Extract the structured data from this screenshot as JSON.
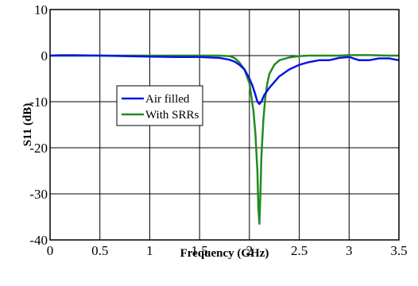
{
  "chart_data": {
    "type": "line",
    "xlabel": "Frequency (GHz)",
    "ylabel": "S11 (dB)",
    "xlim": [
      0,
      3.5
    ],
    "ylim": [
      -40,
      10
    ],
    "xticks": [
      0,
      0.5,
      1,
      1.5,
      2,
      2.5,
      3,
      3.5
    ],
    "yticks": [
      10,
      0,
      -10,
      -20,
      -30,
      -40
    ],
    "xtick_labels": [
      "0",
      "0.5",
      "1",
      "1.5",
      "2",
      "2.5",
      "3",
      "3.5"
    ],
    "ytick_labels": [
      "10",
      "0",
      "-10",
      "-20",
      "-30",
      "-40"
    ],
    "grid": true,
    "legend_position": "left-center",
    "series": [
      {
        "name": "Air filled",
        "color": "#0a14e6",
        "x": [
          0,
          0.1,
          0.25,
          0.5,
          0.75,
          1.0,
          1.25,
          1.5,
          1.7,
          1.8,
          1.85,
          1.9,
          1.95,
          2.0,
          2.03,
          2.06,
          2.08,
          2.1,
          2.12,
          2.15,
          2.2,
          2.3,
          2.4,
          2.5,
          2.6,
          2.7,
          2.8,
          2.9,
          3.0,
          3.1,
          3.2,
          3.3,
          3.4,
          3.5
        ],
        "y": [
          0,
          0,
          0,
          0,
          -0.1,
          -0.2,
          -0.3,
          -0.3,
          -0.5,
          -0.9,
          -1.3,
          -2.0,
          -3.0,
          -5.0,
          -6.5,
          -8.5,
          -10.0,
          -10.5,
          -10.0,
          -8.5,
          -7.0,
          -4.5,
          -3.0,
          -2.0,
          -1.4,
          -1.0,
          -1.0,
          -0.5,
          -0.3,
          -1.0,
          -1.0,
          -0.6,
          -0.6,
          -1.0
        ]
      },
      {
        "name": "With SRRs",
        "color": "#228b22",
        "x": [
          0,
          0.1,
          0.25,
          0.5,
          0.75,
          1.0,
          1.25,
          1.5,
          1.7,
          1.8,
          1.85,
          1.9,
          1.95,
          2.0,
          2.02,
          2.04,
          2.06,
          2.08,
          2.09,
          2.1,
          2.11,
          2.12,
          2.14,
          2.16,
          2.18,
          2.2,
          2.25,
          2.3,
          2.4,
          2.5,
          2.6,
          2.7,
          2.8,
          2.9,
          3.0,
          3.2,
          3.4,
          3.5
        ],
        "y": [
          0,
          0.1,
          0.1,
          0,
          0,
          0,
          0,
          0,
          0,
          -0.1,
          -0.5,
          -1.5,
          -3.0,
          -6.0,
          -9.0,
          -12.0,
          -17.0,
          -25.0,
          -33.0,
          -36.5,
          -30.0,
          -22.0,
          -14.0,
          -9.0,
          -6.0,
          -4.0,
          -2.0,
          -1.0,
          -0.4,
          -0.1,
          0,
          0,
          0,
          0,
          0.1,
          0.1,
          0,
          0
        ]
      }
    ]
  }
}
